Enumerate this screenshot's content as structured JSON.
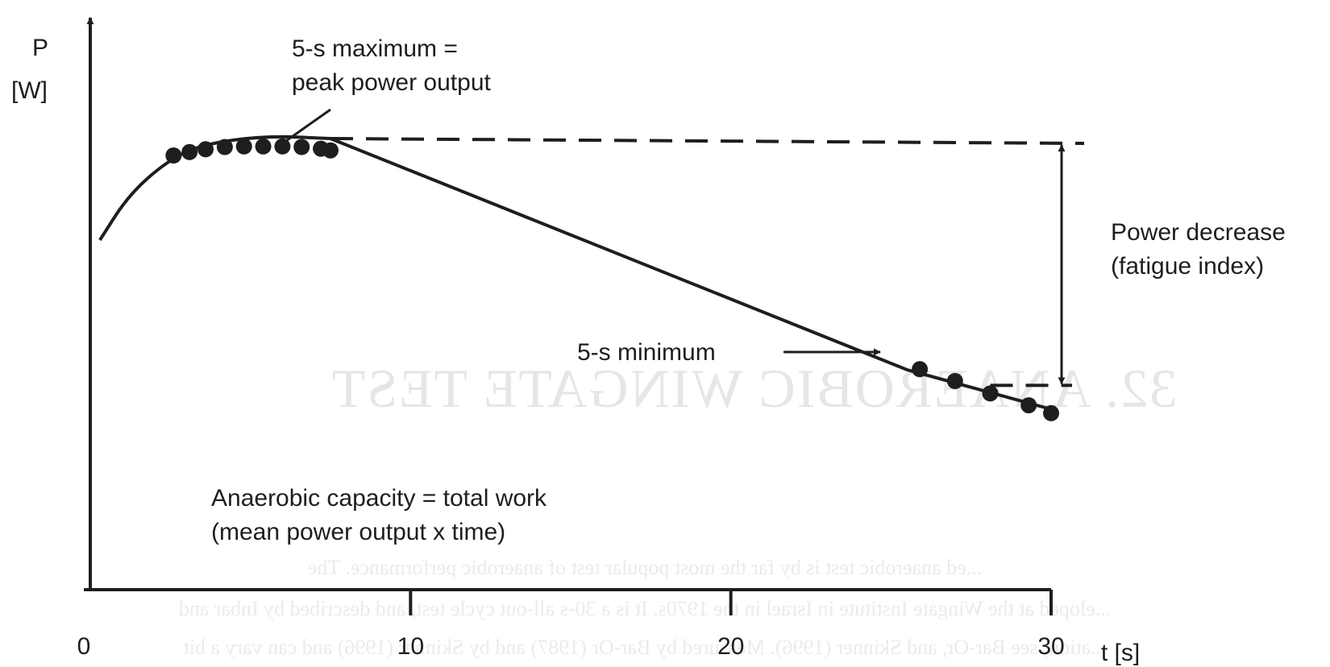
{
  "chart_data": {
    "type": "line",
    "title": "",
    "xlabel": "t [s]",
    "ylabel_line1": "P",
    "ylabel_line2": "[W]",
    "xlim": [
      0,
      30
    ],
    "xticks": [
      {
        "value": 0,
        "label": "0"
      },
      {
        "value": 10,
        "label": "10"
      },
      {
        "value": 20,
        "label": "20"
      },
      {
        "value": 30,
        "label": "30"
      }
    ],
    "y_numeric_ticks": false,
    "grid": false,
    "curve": {
      "rise": [
        [
          0.3,
          0.62
        ],
        [
          1.2,
          0.7
        ],
        [
          2.4,
          0.76
        ],
        [
          3.5,
          0.79
        ],
        [
          5.5,
          0.805
        ],
        [
          7.5,
          0.8
        ]
      ],
      "decline": [
        [
          7.5,
          0.8
        ],
        [
          25.5,
          0.39
        ],
        [
          30,
          0.32
        ]
      ]
    },
    "points": [
      [
        2.6,
        0.77
      ],
      [
        3.1,
        0.776
      ],
      [
        3.6,
        0.781
      ],
      [
        4.2,
        0.785
      ],
      [
        4.8,
        0.786
      ],
      [
        5.4,
        0.786
      ],
      [
        6.0,
        0.786
      ],
      [
        6.6,
        0.785
      ],
      [
        7.2,
        0.782
      ],
      [
        7.5,
        0.779
      ],
      [
        25.9,
        0.391
      ],
      [
        27.0,
        0.37
      ],
      [
        28.1,
        0.348
      ],
      [
        29.3,
        0.327
      ],
      [
        30.0,
        0.313
      ]
    ],
    "peak_level": 0.8,
    "min_level": 0.348,
    "annotations": {
      "peak_line1": "5-s maximum =",
      "peak_line2": "peak power output",
      "min_label": "5-s minimum",
      "decrease_line1": "Power decrease",
      "decrease_line2": "(fatigue index)",
      "capacity_line1": "Anaerobic capacity = total work",
      "capacity_line2": "(mean power output x time)"
    }
  },
  "bleed_through": {
    "heading": "32. ANAEROBIC WINGATE TEST",
    "lines": [
      "...ed anaerobic test is by far the most popular test of anaerobic performance. The",
      "...eloped at the Wingate Institute in Israel in the 1970s. It is a 30-s all-out cycle test, and described by Inbar and",
      "...ation; see Bar-Or, and Skinner (1996). Measured by Bar-Or (1987) and by Skinner (1996) and can vary a bit"
    ]
  }
}
